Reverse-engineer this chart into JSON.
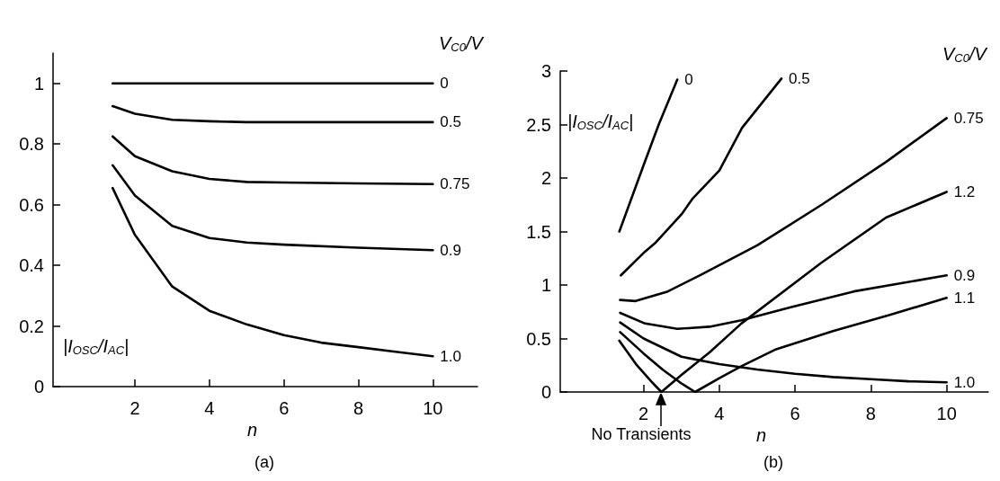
{
  "chart_data": [
    {
      "type": "line",
      "xlabel": "n",
      "ylabel": "|I$_{OSC}$/I$_{AC}$|",
      "legend_title": "V$_{C0}$/V",
      "annotations": [
        "(a)"
      ],
      "xlim": [
        -0.2,
        11.2
      ],
      "xticks": [
        2,
        4,
        6,
        8,
        10
      ],
      "ylim": [
        0,
        1.1
      ],
      "yticks": [
        0,
        0.2,
        0.4,
        0.6,
        0.8,
        1
      ],
      "series": [
        {
          "name": "0",
          "color": "#000000",
          "x": [
            1.4,
            10
          ],
          "values": [
            1,
            1
          ]
        },
        {
          "name": "0.5",
          "color": "#000000",
          "x": [
            1.4,
            2,
            3,
            4,
            5,
            6,
            8,
            10
          ],
          "values": [
            0.925,
            0.9,
            0.88,
            0.875,
            0.872,
            0.872,
            0.872,
            0.872
          ]
        },
        {
          "name": "0.75",
          "color": "#000000",
          "x": [
            1.4,
            2,
            3,
            4,
            5,
            6,
            8,
            10
          ],
          "values": [
            0.825,
            0.76,
            0.71,
            0.685,
            0.675,
            0.673,
            0.67,
            0.668
          ]
        },
        {
          "name": "0.9",
          "color": "#000000",
          "x": [
            1.4,
            2,
            3,
            4,
            5,
            6,
            8,
            10
          ],
          "values": [
            0.73,
            0.63,
            0.53,
            0.49,
            0.475,
            0.468,
            0.458,
            0.45
          ]
        },
        {
          "name": "1.0",
          "color": "#000000",
          "x": [
            1.4,
            2,
            3,
            4,
            5,
            6,
            7,
            8,
            9,
            10
          ],
          "values": [
            0.655,
            0.5,
            0.33,
            0.25,
            0.205,
            0.17,
            0.145,
            0.13,
            0.115,
            0.1
          ]
        }
      ]
    },
    {
      "type": "line",
      "xlabel": "n",
      "ylabel": "|I$_{OSC}$/I$_{AC}$|",
      "legend_title": "V$_{C0}$/V",
      "annotations": [
        "(b)",
        {
          "text": "No Transients",
          "x": 2.47,
          "y": 0
        }
      ],
      "xlim": [
        -0.2,
        11.1
      ],
      "xticks": [
        2,
        4,
        6,
        8,
        10
      ],
      "ylim": [
        0,
        3
      ],
      "yticks": [
        0,
        0.5,
        1,
        1.5,
        2,
        2.5,
        3
      ],
      "series": [
        {
          "name": "0",
          "color": "#000000",
          "x": [
            1.36,
            2,
            2.4,
            2.89
          ],
          "values": [
            1.5,
            2.12,
            2.5,
            2.92
          ]
        },
        {
          "name": "0.5",
          "color": "#000000",
          "x": [
            1.4,
            2,
            2.3,
            3,
            3.3,
            4,
            4.6,
            5.64
          ],
          "values": [
            1.09,
            1.3,
            1.39,
            1.66,
            1.81,
            2.07,
            2.47,
            2.93
          ]
        },
        {
          "name": "0.75",
          "color": "#000000",
          "x": [
            1.38,
            1.79,
            2.64,
            3.48,
            5,
            6.7,
            8.4,
            10
          ],
          "values": [
            0.86,
            0.85,
            0.94,
            1.09,
            1.37,
            1.75,
            2.15,
            2.56
          ]
        },
        {
          "name": "1.2",
          "color": "#000000",
          "x": [
            1.36,
            1.8,
            2.2,
            2.47,
            3,
            3.74,
            4.58,
            6.7,
            8.4,
            10
          ],
          "values": [
            0.48,
            0.26,
            0.1,
            0,
            0.16,
            0.37,
            0.64,
            1.21,
            1.63,
            1.87
          ]
        },
        {
          "name": "0.9",
          "color": "#000000",
          "x": [
            1.38,
            2.04,
            2.89,
            3.74,
            4.58,
            5.86,
            7.55,
            10
          ],
          "values": [
            0.74,
            0.64,
            0.59,
            0.61,
            0.67,
            0.79,
            0.94,
            1.09
          ]
        },
        {
          "name": "1.1",
          "color": "#000000",
          "x": [
            1.38,
            2,
            2.5,
            3,
            3.36,
            4,
            4.58,
            5.5,
            7,
            8.5,
            10
          ],
          "values": [
            0.56,
            0.36,
            0.21,
            0.08,
            0,
            0.13,
            0.24,
            0.4,
            0.57,
            0.72,
            0.88
          ]
        },
        {
          "name": "1.0",
          "color": "#000000",
          "x": [
            1.38,
            2,
            3,
            4,
            5,
            6,
            7,
            8,
            9,
            10
          ],
          "values": [
            0.65,
            0.5,
            0.33,
            0.26,
            0.21,
            0.17,
            0.14,
            0.12,
            0.1,
            0.09
          ]
        }
      ]
    }
  ]
}
